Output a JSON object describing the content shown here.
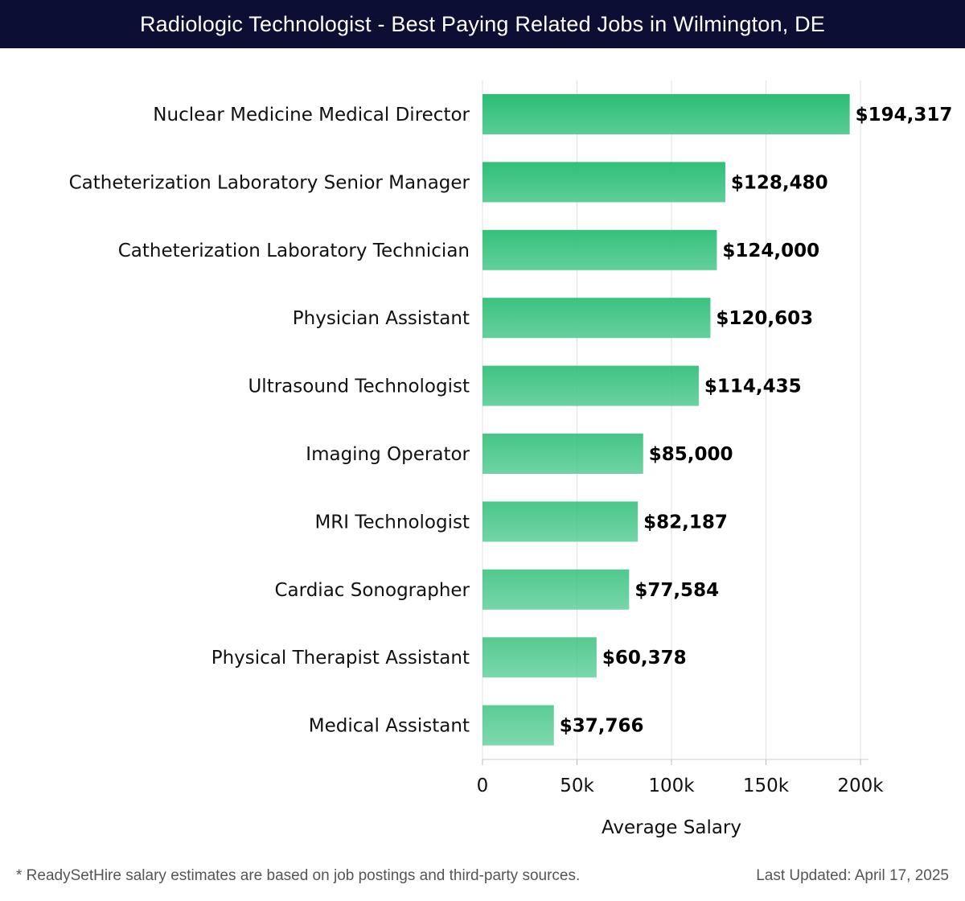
{
  "title": "Radiologic Technologist - Best Paying Related Jobs in Wilmington, DE",
  "colors": {
    "title_bg": "#0c0f33",
    "bar_top": "#2bbd74",
    "bar_bottom": "#5acd97",
    "grid": "#e2e2e2",
    "text": "#111111"
  },
  "chart_data": {
    "type": "bar",
    "orientation": "horizontal",
    "categories": [
      "Nuclear Medicine Medical Director",
      "Catheterization Laboratory Senior Manager",
      "Catheterization Laboratory Technician",
      "Physician Assistant",
      "Ultrasound Technologist",
      "Imaging Operator",
      "MRI Technologist",
      "Cardiac Sonographer",
      "Physical Therapist Assistant",
      "Medical Assistant"
    ],
    "values": [
      194317,
      128480,
      124000,
      120603,
      114435,
      85000,
      82187,
      77584,
      60378,
      37766
    ],
    "value_labels": [
      "$194,317",
      "$128,480",
      "$124,000",
      "$120,603",
      "$114,435",
      "$85,000",
      "$82,187",
      "$77,584",
      "$60,378",
      "$37,766"
    ],
    "xlabel": "Average Salary",
    "ylabel": "",
    "xlim": [
      0,
      200000
    ],
    "xticks": [
      0,
      50000,
      100000,
      150000,
      200000
    ],
    "xtick_labels": [
      "0",
      "50k",
      "100k",
      "150k",
      "200k"
    ],
    "grid": true
  },
  "footer": {
    "note": "* ReadySetHire salary estimates are based on job postings and third-party sources.",
    "updated": "Last Updated: April 17, 2025"
  }
}
